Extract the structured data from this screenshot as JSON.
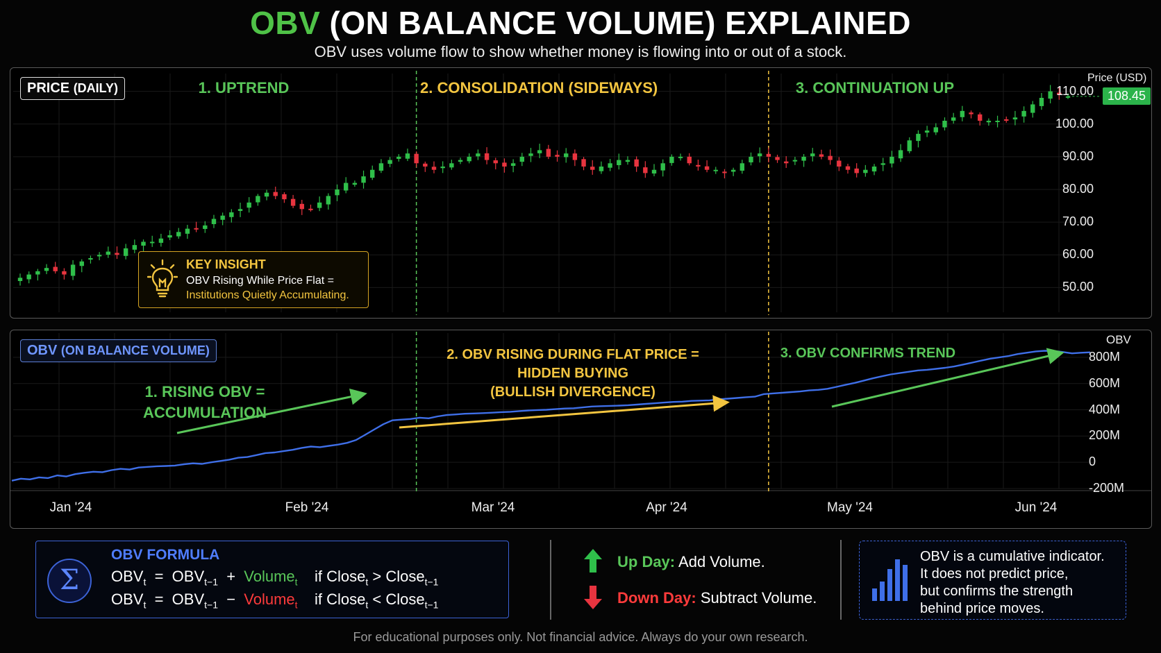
{
  "header": {
    "title_highlight": "OBV",
    "title_rest": " (ON BALANCE VOLUME) EXPLAINED",
    "subtitle": "OBV uses volume flow to show whether money is flowing into or out of a stock."
  },
  "price_panel": {
    "tag_main": "PRICE",
    "tag_sub": "(DAILY)",
    "phase1": "1. UPTREND",
    "phase2": "2. CONSOLIDATION (SIDEWAYS)",
    "phase3": "3. CONTINUATION UP",
    "axis_title": "Price (USD)",
    "last_price": "108.45",
    "y_ticks": [
      "110.00",
      "100.00",
      "90.00",
      "80.00",
      "70.00",
      "60.00",
      "50.00"
    ],
    "insight_title": "KEY INSIGHT",
    "insight_line1": "OBV Rising While Price Flat =",
    "insight_line2": "Institutions Quietly Accumulating."
  },
  "obv_panel": {
    "tag_main": "OBV",
    "tag_sub": "(ON BALANCE VOLUME)",
    "note1_line1": "1. RISING OBV =",
    "note1_line2": "ACCUMULATION",
    "note2_line1": "2. OBV RISING DURING FLAT PRICE =",
    "note2_line2": "HIDDEN BUYING",
    "note2_line3": "(BULLISH DIVERGENCE)",
    "note3": "3. OBV CONFIRMS TREND",
    "axis_title": "OBV",
    "y_ticks": [
      "800M",
      "600M",
      "400M",
      "200M",
      "0",
      "-200M"
    ],
    "x_ticks": [
      "Jan '24",
      "Feb '24",
      "Mar '24",
      "Apr '24",
      "May '24",
      "Jun '24"
    ]
  },
  "formula": {
    "heading": "OBV FORMULA",
    "sigma": "Σ"
  },
  "legend": {
    "up_key": "Up Day:",
    "up_text": "Add Volume.",
    "down_key": "Down Day:",
    "down_text": "Subtract Volume."
  },
  "note": {
    "line1": "OBV is a cumulative indicator.",
    "line2": "It does not predict price,",
    "line3": "but confirms the strength",
    "line4": "behind price moves."
  },
  "footer": "For educational purposes only. Not financial advice. Always do your own research.",
  "colors": {
    "up": "#2fbf4a",
    "down": "#e8343f",
    "obv_line": "#3f6fe8",
    "accent_green": "#59c659",
    "accent_yellow": "#f3c540"
  },
  "chart_data": [
    {
      "type": "candlestick",
      "title": "PRICE (DAILY)",
      "ylabel": "Price (USD)",
      "ylim": [
        45,
        115
      ],
      "last_price": 108.45,
      "phases": [
        "1. UPTREND",
        "2. CONSOLIDATION (SIDEWAYS)",
        "3. CONTINUATION UP"
      ],
      "close": [
        53,
        54,
        55,
        56,
        55,
        54,
        57,
        58,
        59,
        60,
        61,
        60,
        62,
        63,
        64,
        64,
        65,
        66,
        67,
        68,
        68,
        69,
        71,
        72,
        73,
        74,
        76,
        78,
        79,
        78,
        77,
        75,
        74,
        74,
        76,
        78,
        80,
        82,
        82,
        84,
        86,
        88,
        89,
        90,
        91,
        88,
        87,
        86,
        87,
        88,
        89,
        90,
        91,
        89,
        88,
        87,
        88,
        90,
        91,
        92,
        90,
        90,
        91,
        89,
        87,
        86,
        87,
        88,
        89,
        89,
        87,
        85,
        86,
        88,
        90,
        90,
        88,
        87,
        86,
        86,
        85,
        86,
        88,
        90,
        91,
        90,
        89,
        88,
        89,
        90,
        91,
        90,
        89,
        87,
        86,
        85,
        86,
        87,
        88,
        90,
        92,
        95,
        97,
        98,
        99,
        101,
        102,
        104,
        103,
        101,
        101,
        101,
        101,
        102,
        104,
        106,
        108,
        110,
        109,
        108.45
      ]
    },
    {
      "type": "line",
      "title": "OBV (ON BALANCE VOLUME)",
      "ylabel": "OBV",
      "ylim": [
        -200,
        900
      ],
      "unit": "M",
      "x_ticks": [
        "Jan '24",
        "Feb '24",
        "Mar '24",
        "Apr '24",
        "May '24",
        "Jun '24"
      ],
      "values": [
        -140,
        -125,
        -130,
        -115,
        -120,
        -100,
        -108,
        -90,
        -80,
        -72,
        -75,
        -60,
        -50,
        -55,
        -40,
        -35,
        -30,
        -28,
        -25,
        -15,
        -8,
        -12,
        0,
        10,
        20,
        35,
        40,
        55,
        70,
        75,
        85,
        95,
        110,
        120,
        115,
        125,
        135,
        148,
        170,
        210,
        250,
        290,
        320,
        325,
        330,
        340,
        335,
        350,
        360,
        365,
        370,
        372,
        375,
        378,
        382,
        385,
        390,
        395,
        398,
        400,
        405,
        410,
        412,
        418,
        425,
        428,
        430,
        432,
        435,
        440,
        445,
        450,
        455,
        460,
        462,
        468,
        470,
        472,
        480,
        485,
        490,
        496,
        500,
        520,
        525,
        530,
        535,
        540,
        548,
        552,
        560,
        575,
        590,
        605,
        622,
        640,
        655,
        670,
        680,
        690,
        700,
        705,
        712,
        720,
        730,
        745,
        760,
        775,
        790,
        800,
        810,
        825,
        835,
        845,
        850,
        848,
        840,
        830,
        835,
        838
      ]
    }
  ]
}
